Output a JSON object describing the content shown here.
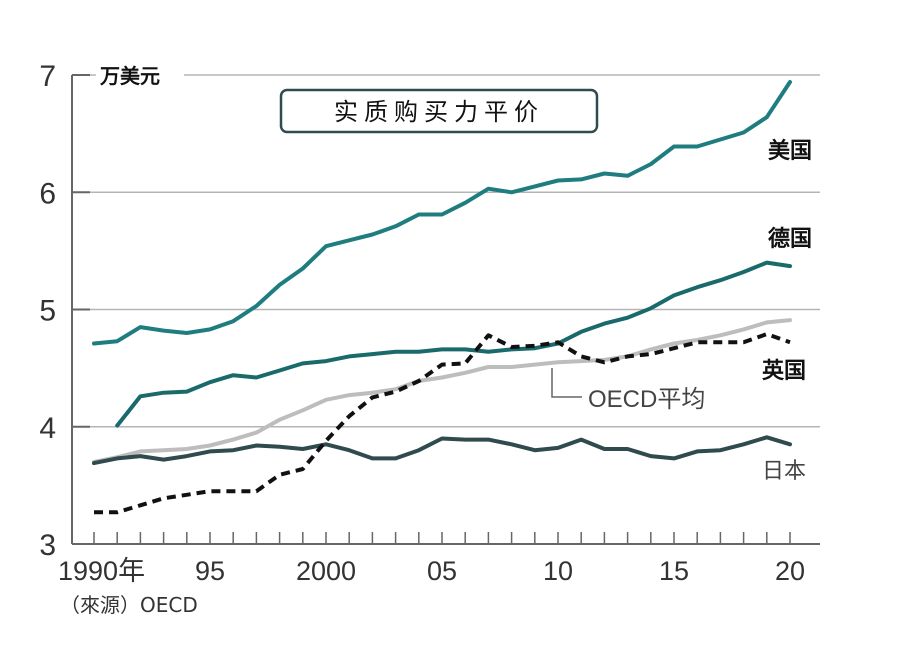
{
  "chart_data": {
    "type": "line",
    "title": "实质购买力平价",
    "ylabel": "万美元",
    "xlabel": "",
    "source": "（來源）OECD",
    "ylim": [
      3,
      7
    ],
    "yticks": [
      3,
      4,
      5,
      6,
      7
    ],
    "ytick_labels": [
      "3",
      "4",
      "5",
      "6",
      "7"
    ],
    "xlim": [
      1990,
      2020
    ],
    "xticks_major": [
      1990,
      1995,
      2000,
      2005,
      2010,
      2015,
      2020
    ],
    "xtick_labels": [
      "1990年",
      "95",
      "2000",
      "05",
      "10",
      "15",
      "20"
    ],
    "grid": true,
    "x": [
      1990,
      1991,
      1992,
      1993,
      1994,
      1995,
      1996,
      1997,
      1998,
      1999,
      2000,
      2001,
      2002,
      2003,
      2004,
      2005,
      2006,
      2007,
      2008,
      2009,
      2010,
      2011,
      2012,
      2013,
      2014,
      2015,
      2016,
      2017,
      2018,
      2019,
      2020
    ],
    "series": [
      {
        "name": "美国",
        "color": "#1f7d80",
        "style": "solid",
        "values": [
          4.71,
          4.73,
          4.85,
          4.82,
          4.8,
          4.83,
          4.9,
          5.03,
          5.21,
          5.35,
          5.54,
          5.59,
          5.64,
          5.71,
          5.81,
          5.81,
          5.91,
          6.03,
          6.0,
          6.05,
          6.1,
          6.11,
          6.16,
          6.14,
          6.24,
          6.39,
          6.39,
          6.45,
          6.51,
          6.64,
          6.94
        ]
      },
      {
        "name": "德国",
        "color": "#1a6a6c",
        "style": "solid",
        "values": [
          null,
          4.01,
          4.26,
          4.29,
          4.3,
          4.38,
          4.44,
          4.42,
          4.48,
          4.54,
          4.56,
          4.6,
          4.62,
          4.64,
          4.64,
          4.66,
          4.66,
          4.64,
          4.66,
          4.67,
          4.71,
          4.81,
          4.88,
          4.93,
          5.01,
          5.12,
          5.19,
          5.25,
          5.32,
          5.4,
          5.37
        ]
      },
      {
        "name": "OECD平均",
        "color": "#bdbdbd",
        "style": "solid",
        "values": [
          3.7,
          3.74,
          3.79,
          3.8,
          3.81,
          3.84,
          3.89,
          3.95,
          4.06,
          4.14,
          4.23,
          4.27,
          4.29,
          4.32,
          4.39,
          4.42,
          4.46,
          4.51,
          4.51,
          4.53,
          4.55,
          4.56,
          4.57,
          4.6,
          4.66,
          4.71,
          4.74,
          4.78,
          4.83,
          4.89,
          4.91
        ]
      },
      {
        "name": "英国",
        "color": "#111111",
        "style": "dashed",
        "values": [
          3.27,
          3.27,
          3.33,
          3.39,
          3.42,
          3.45,
          3.45,
          3.45,
          3.59,
          3.64,
          3.88,
          4.09,
          4.25,
          4.3,
          4.39,
          4.53,
          4.54,
          4.78,
          4.68,
          4.69,
          4.72,
          4.6,
          4.55,
          4.6,
          4.62,
          4.67,
          4.72,
          4.72,
          4.72,
          4.79,
          4.72
        ]
      },
      {
        "name": "日本",
        "color": "#2f4b4d",
        "style": "solid",
        "values": [
          3.69,
          3.73,
          3.75,
          3.72,
          3.75,
          3.79,
          3.8,
          3.84,
          3.83,
          3.81,
          3.85,
          3.8,
          3.73,
          3.73,
          3.8,
          3.9,
          3.89,
          3.89,
          3.85,
          3.8,
          3.82,
          3.89,
          3.81,
          3.81,
          3.75,
          3.73,
          3.79,
          3.8,
          3.85,
          3.91,
          3.85
        ]
      }
    ],
    "legend": "inline-right"
  }
}
